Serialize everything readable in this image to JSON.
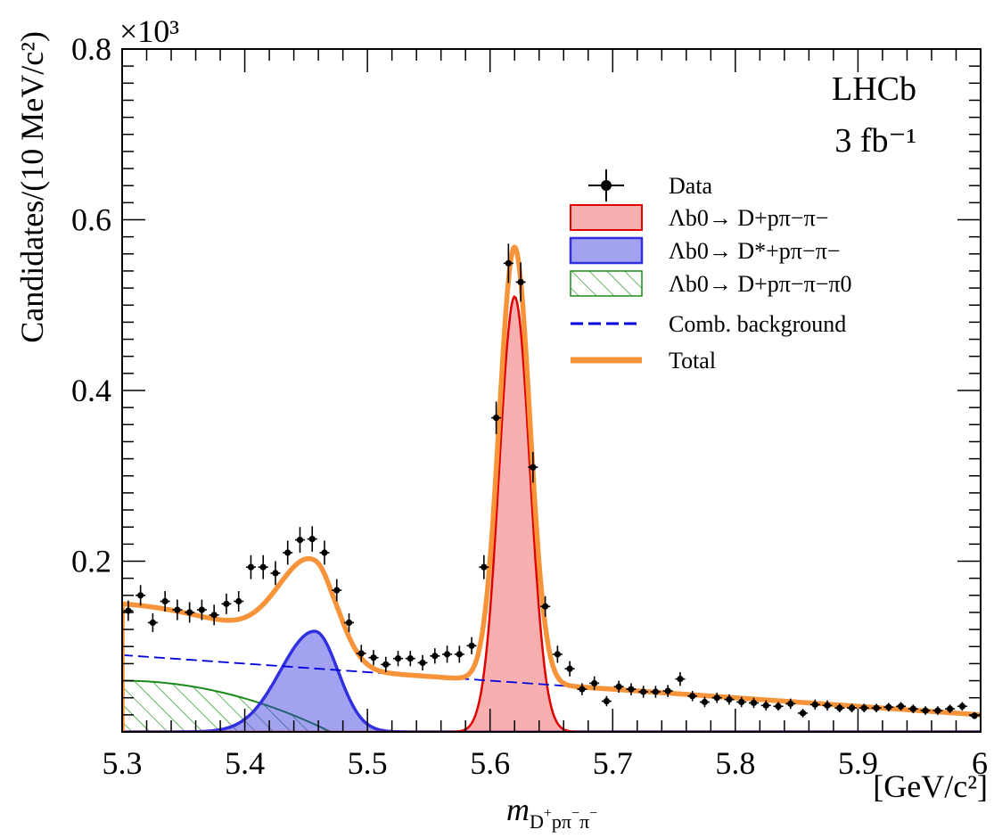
{
  "chart_data": {
    "type": "line",
    "title": "",
    "xlabel": "m_{D+pπ−π−}",
    "xlabel_unit": "[GeV/c²]",
    "ylabel": "Candidates/(10 MeV/c²)",
    "y_multiplier": "×10³",
    "xlim": [
      5.3,
      6.0
    ],
    "ylim": [
      0,
      0.8
    ],
    "x_ticks": [
      "5.3",
      "5.4",
      "5.5",
      "5.6",
      "5.7",
      "5.8",
      "5.9",
      "6"
    ],
    "y_ticks": [
      "0.2",
      "0.4",
      "0.6",
      "0.8"
    ],
    "annotations": [
      "LHCb",
      "3 fb⁻¹"
    ],
    "legend_position": "top-right",
    "legend": [
      {
        "key": "data",
        "label": "Data"
      },
      {
        "key": "signal",
        "label": "Λb0→ D+pπ−π−",
        "color": "#f26d6d"
      },
      {
        "key": "dstar",
        "label": "Λb0→ D*+pπ−π−",
        "color": "#3030e0"
      },
      {
        "key": "pi0",
        "label": "Λb0→ D+pπ−π−π0",
        "color": "#1a8a1a"
      },
      {
        "key": "comb",
        "label": "Comb. background",
        "color": "#0000dd"
      },
      {
        "key": "total",
        "label": "Total",
        "color": "#f7943a"
      }
    ],
    "data_points": {
      "x": [
        5.305,
        5.315,
        5.325,
        5.335,
        5.345,
        5.355,
        5.365,
        5.375,
        5.385,
        5.395,
        5.405,
        5.415,
        5.425,
        5.435,
        5.445,
        5.455,
        5.465,
        5.475,
        5.485,
        5.495,
        5.505,
        5.515,
        5.525,
        5.535,
        5.545,
        5.555,
        5.565,
        5.575,
        5.585,
        5.595,
        5.605,
        5.615,
        5.625,
        5.635,
        5.645,
        5.655,
        5.665,
        5.675,
        5.685,
        5.695,
        5.705,
        5.715,
        5.725,
        5.735,
        5.745,
        5.755,
        5.765,
        5.775,
        5.785,
        5.795,
        5.805,
        5.815,
        5.825,
        5.835,
        5.845,
        5.855,
        5.865,
        5.875,
        5.885,
        5.895,
        5.905,
        5.915,
        5.925,
        5.935,
        5.945,
        5.955,
        5.965,
        5.975,
        5.985,
        5.995
      ],
      "y": [
        0.142,
        0.16,
        0.128,
        0.153,
        0.143,
        0.14,
        0.143,
        0.137,
        0.15,
        0.153,
        0.193,
        0.193,
        0.186,
        0.21,
        0.225,
        0.226,
        0.21,
        0.166,
        0.128,
        0.092,
        0.087,
        0.079,
        0.086,
        0.086,
        0.081,
        0.089,
        0.091,
        0.091,
        0.101,
        0.193,
        0.368,
        0.549,
        0.527,
        0.31,
        0.147,
        0.091,
        0.074,
        0.05,
        0.057,
        0.036,
        0.053,
        0.05,
        0.047,
        0.047,
        0.048,
        0.062,
        0.042,
        0.035,
        0.04,
        0.038,
        0.035,
        0.034,
        0.031,
        0.03,
        0.033,
        0.022,
        0.032,
        0.031,
        0.028,
        0.028,
        0.028,
        0.028,
        0.029,
        0.03,
        0.027,
        0.025,
        0.025,
        0.027,
        0.03,
        0.019
      ],
      "err": [
        0.012,
        0.012,
        0.011,
        0.012,
        0.012,
        0.012,
        0.012,
        0.012,
        0.012,
        0.012,
        0.014,
        0.014,
        0.014,
        0.014,
        0.015,
        0.015,
        0.014,
        0.013,
        0.011,
        0.01,
        0.009,
        0.009,
        0.009,
        0.009,
        0.009,
        0.009,
        0.01,
        0.01,
        0.01,
        0.014,
        0.019,
        0.023,
        0.023,
        0.018,
        0.012,
        0.01,
        0.009,
        0.007,
        0.008,
        0.006,
        0.007,
        0.007,
        0.007,
        0.007,
        0.007,
        0.008,
        0.006,
        0.006,
        0.006,
        0.006,
        0.006,
        0.006,
        0.006,
        0.005,
        0.006,
        0.005,
        0.006,
        0.006,
        0.005,
        0.005,
        0.005,
        0.005,
        0.005,
        0.005,
        0.005,
        0.005,
        0.005,
        0.005,
        0.005,
        0.004
      ]
    },
    "signal_model": {
      "mean": 5.62,
      "sigma": 0.0125,
      "peak": 0.51,
      "color": "#f26d6d",
      "fill_opacity": 0.55
    },
    "dstar_model": {
      "mean": 5.457,
      "sigma_left": 0.028,
      "sigma_right": 0.019,
      "peak": 0.118,
      "color": "#3030e0",
      "fill_opacity": 0.45
    },
    "pi0_model": {
      "start": 0.06,
      "end_x": 5.47,
      "color": "#1a8a1a"
    },
    "comb_model": {
      "y_at_xmin": 0.09,
      "y_at_xmax": 0.02,
      "color": "#0000dd"
    },
    "total_color": "#f7943a"
  }
}
